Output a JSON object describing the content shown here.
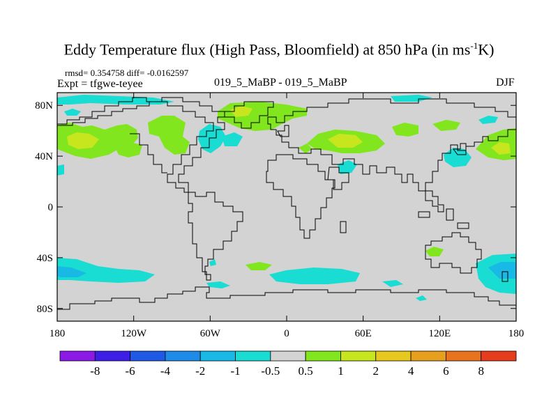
{
  "title": {
    "main": "Eddy Temperature flux (High Pass, Bloomfield) at 850 hPa (in ms",
    "sup": "-1",
    "end": "K)"
  },
  "stats": "rmsd= 0.354758 diff= -0.0162597",
  "expt": "Expt = tfgwe-teyee",
  "case": "019_5_MaBP - 019_5_MaBP",
  "season": "DJF",
  "map": {
    "background_color": "#d3d3d3",
    "lon_range": [
      -180,
      180
    ],
    "lat_range": [
      -90,
      90
    ],
    "lat_ticks": [
      {
        "value": 80,
        "label": "80N"
      },
      {
        "value": 40,
        "label": "40N"
      },
      {
        "value": 0,
        "label": "0"
      },
      {
        "value": -40,
        "label": "40S"
      },
      {
        "value": -80,
        "label": "80S"
      }
    ],
    "lon_ticks": [
      {
        "value": -180,
        "label": "180"
      },
      {
        "value": -120,
        "label": "120W"
      },
      {
        "value": -60,
        "label": "60W"
      },
      {
        "value": 0,
        "label": "0"
      },
      {
        "value": 60,
        "label": "60E"
      },
      {
        "value": 120,
        "label": "120E"
      },
      {
        "value": 180,
        "label": "180"
      }
    ]
  },
  "colorbar": {
    "colors": [
      "#8c1ae6",
      "#3c1ee6",
      "#1e5ae6",
      "#1e8ce6",
      "#19b9e6",
      "#19dcd2",
      "#d3d3d3",
      "#82e61e",
      "#c8e61e",
      "#e6c81e",
      "#e6a01e",
      "#e6731e",
      "#e63c1e"
    ],
    "labels": [
      "-8",
      "-6",
      "-4",
      "-2",
      "-1",
      "-0.5",
      "0.5",
      "1",
      "2",
      "4",
      "6",
      "8"
    ]
  },
  "chart_data": {
    "type": "heatmap",
    "title": "Eddy Temperature flux (High Pass, Bloomfield) at 850 hPa (in ms-1K)",
    "levels": [
      -8,
      -6,
      -4,
      -2,
      -1,
      -0.5,
      0.5,
      1,
      2,
      4,
      6,
      8
    ],
    "xlim": [
      -180,
      180
    ],
    "ylim": [
      -90,
      90
    ],
    "regions": [
      {
        "lon": -160,
        "lat": 50,
        "value": 1.5
      },
      {
        "lon": -155,
        "lat": 42,
        "value": 2.5
      },
      {
        "lon": -115,
        "lat": 50,
        "value": 1.5
      },
      {
        "lon": -90,
        "lat": 48,
        "value": 1.5
      },
      {
        "lon": -80,
        "lat": 50,
        "value": 1.5
      },
      {
        "lon": -55,
        "lat": 50,
        "value": -1.5
      },
      {
        "lon": -40,
        "lat": 70,
        "value": 1.5
      },
      {
        "lon": 0,
        "lat": 75,
        "value": 1.5
      },
      {
        "lon": 60,
        "lat": 47,
        "value": 1.5
      },
      {
        "lon": 60,
        "lat": 45,
        "value": 2.5
      },
      {
        "lon": 140,
        "lat": 40,
        "value": -1.5
      },
      {
        "lon": 165,
        "lat": 42,
        "value": 1.5
      },
      {
        "lon": -150,
        "lat": 88,
        "value": -0.7
      },
      {
        "lon": -160,
        "lat": -50,
        "value": -1.5
      },
      {
        "lon": 45,
        "lat": -55,
        "value": -0.7
      },
      {
        "lon": 160,
        "lat": -50,
        "value": -1.5
      },
      {
        "lon": 120,
        "lat": -35,
        "value": 1.5
      }
    ]
  }
}
